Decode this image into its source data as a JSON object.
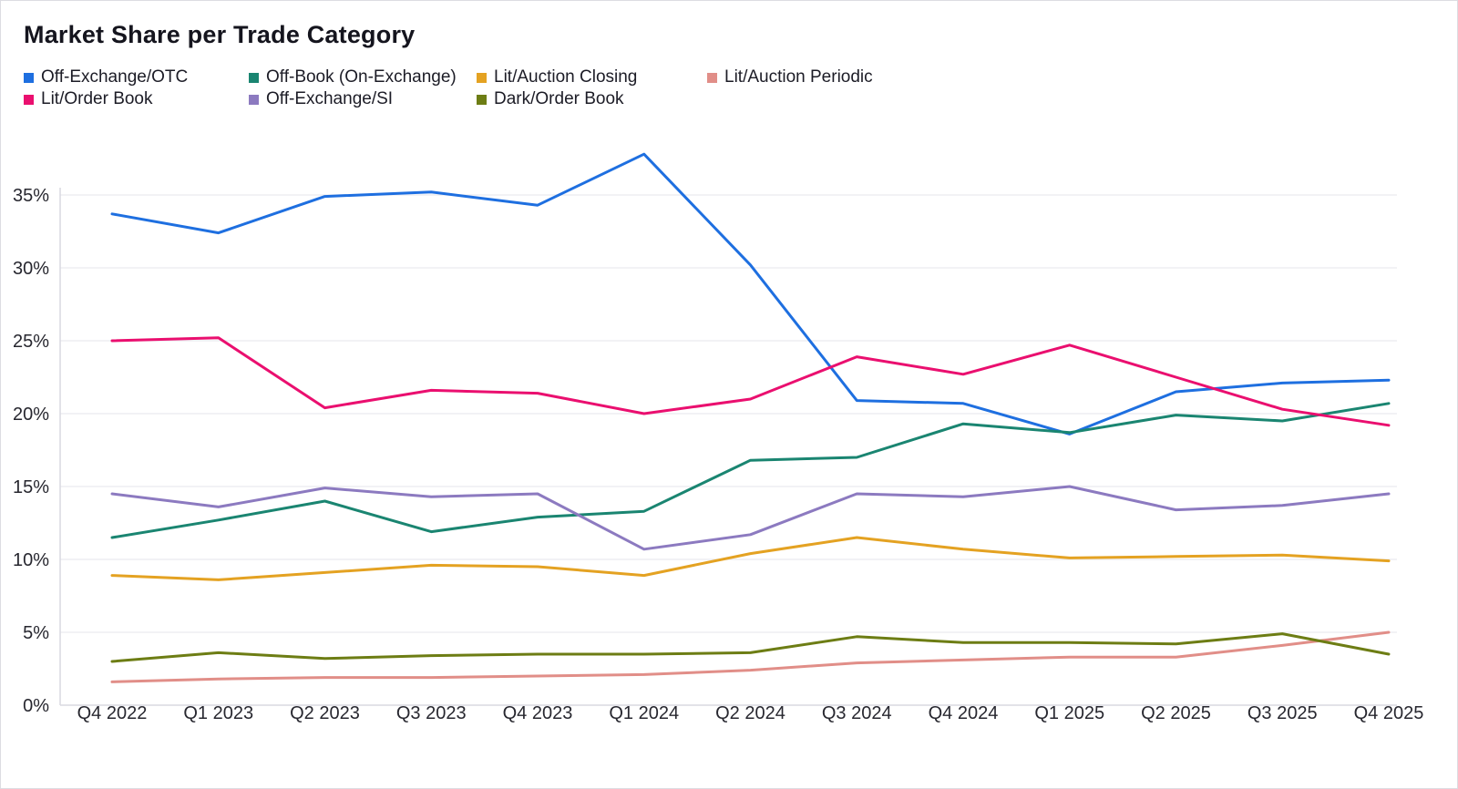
{
  "page": {
    "title": "Market Share per Trade Category"
  },
  "axes": {
    "y_tick_labels": [
      "0%",
      "5%",
      "10%",
      "15%",
      "20%",
      "25%",
      "30%",
      "35%"
    ],
    "y_tick_values": [
      0,
      5,
      10,
      15,
      20,
      25,
      30,
      35
    ]
  },
  "colors": {
    "grid_line": "#ededf2",
    "axis_line": "#d9d9e0",
    "tick_text": "#27272f"
  },
  "chart_data": {
    "type": "line",
    "title": "Market Share per Trade Category",
    "xlabel": "",
    "ylabel": "",
    "y_tick_format": "percent",
    "ylim": [
      0,
      38.5
    ],
    "grid": "horizontal",
    "legend_position": "top-left",
    "categories": [
      "Q4 2022",
      "Q1 2023",
      "Q2 2023",
      "Q3 2023",
      "Q4 2023",
      "Q1 2024",
      "Q2 2024",
      "Q3 2024",
      "Q4 2024",
      "Q1 2025",
      "Q2 2025",
      "Q3 2025",
      "Q4 2025"
    ],
    "series": [
      {
        "name": "Off-Exchange/OTC",
        "color": "#1e6fe0",
        "values": [
          33.7,
          32.4,
          34.9,
          35.2,
          34.3,
          37.8,
          30.2,
          20.9,
          20.7,
          18.6,
          21.5,
          22.1,
          22.3
        ]
      },
      {
        "name": "Off-Book (On-Exchange)",
        "color": "#1a8571",
        "values": [
          11.5,
          12.7,
          14.0,
          11.9,
          12.9,
          13.3,
          16.8,
          17.0,
          19.3,
          18.7,
          19.9,
          19.5,
          20.7
        ]
      },
      {
        "name": "Lit/Auction Closing",
        "color": "#e4a222",
        "values": [
          8.9,
          8.6,
          9.1,
          9.6,
          9.5,
          8.9,
          10.4,
          11.5,
          10.7,
          10.1,
          10.2,
          10.3,
          9.9
        ]
      },
      {
        "name": "Lit/Auction Periodic",
        "color": "#e18e88",
        "values": [
          1.6,
          1.8,
          1.9,
          1.9,
          2.0,
          2.1,
          2.4,
          2.9,
          3.1,
          3.3,
          3.3,
          4.1,
          5.0
        ]
      },
      {
        "name": "Lit/Order Book",
        "color": "#ea0f6f",
        "values": [
          25.0,
          25.2,
          20.4,
          21.6,
          21.4,
          20.0,
          21.0,
          23.9,
          22.7,
          24.7,
          22.5,
          20.3,
          19.2
        ]
      },
      {
        "name": "Off-Exchange/SI",
        "color": "#8c7ac0",
        "values": [
          14.5,
          13.6,
          14.9,
          14.3,
          14.5,
          10.7,
          11.7,
          14.5,
          14.3,
          15.0,
          13.4,
          13.7,
          14.5
        ]
      },
      {
        "name": "Dark/Order Book",
        "color": "#6d7d14",
        "values": [
          3.0,
          3.6,
          3.2,
          3.4,
          3.5,
          3.5,
          3.6,
          4.7,
          4.3,
          4.3,
          4.2,
          4.9,
          3.5
        ]
      }
    ]
  }
}
